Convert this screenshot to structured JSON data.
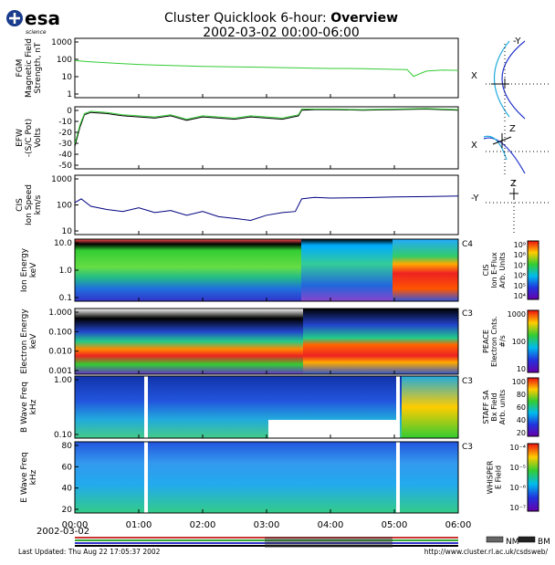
{
  "header": {
    "logo_text": "esa",
    "logo_sub": "science",
    "title_line1": "Cluster Quicklook 6-hour: ",
    "title_bold": "Overview",
    "title_line2": "2002-03-02 00:00-06:00"
  },
  "footer": {
    "date": "2002-03-02",
    "last_updated": "Last Updated:  Thu Aug 22 17:05:37 2002",
    "url": "http://www.cluster.rl.ac.uk/csdsweb/",
    "mode_nm": "NM",
    "mode_bm": "BM"
  },
  "chart_data": [
    {
      "type": "line",
      "panel": "FGM",
      "ylabel": [
        "FGM",
        "Magnetic Field",
        "Strength, nT"
      ],
      "yscale": "log",
      "ylim": [
        1,
        1000
      ],
      "yticks": [
        "1000",
        "100",
        "10",
        "1"
      ],
      "xticks": [
        "00:00",
        "01:00",
        "02:00",
        "03:00",
        "04:00",
        "05:00",
        "06:00"
      ],
      "series": [
        {
          "color": "#33cc33",
          "x": [
            0,
            0.25,
            0.5,
            0.75,
            1.0,
            1.25,
            1.5,
            1.75,
            2.0,
            2.25,
            2.5,
            2.75,
            3.0,
            3.25,
            3.5,
            3.75,
            4.0,
            4.25,
            4.5,
            4.75,
            5.0,
            5.2,
            5.3,
            5.5,
            5.75,
            6.0
          ],
          "y": [
            75,
            65,
            58,
            52,
            48,
            45,
            42,
            40,
            38,
            37,
            36,
            35,
            34,
            33,
            32,
            31,
            30,
            30,
            29,
            28,
            27,
            26,
            12,
            22,
            25,
            24
          ]
        }
      ]
    },
    {
      "type": "line",
      "panel": "EFW",
      "ylabel": [
        "EFW",
        "-(S/C Pot)",
        "Volts"
      ],
      "ylim": [
        -55,
        0
      ],
      "yticks": [
        "0",
        "-10",
        "-20",
        "-30",
        "-40",
        "-50"
      ],
      "series": [
        {
          "color": "#000000",
          "x": [
            0,
            0.08,
            0.15,
            0.25,
            0.5,
            0.75,
            1.0,
            1.25,
            1.5,
            1.75,
            2.0,
            2.25,
            2.5,
            2.75,
            3.0,
            3.25,
            3.5,
            3.55,
            3.75,
            4.0,
            4.5,
            5.0,
            5.5,
            6.0
          ],
          "y": [
            -35,
            -18,
            -7,
            -5,
            -6,
            -8,
            -9,
            -10,
            -8,
            -12,
            -9,
            -10,
            -11,
            -9,
            -10,
            -11,
            -8,
            -3,
            -2.5,
            -2.5,
            -3,
            -2.5,
            -2,
            -3
          ]
        },
        {
          "color": "#33cc33",
          "x": [
            0,
            0.08,
            0.15,
            0.25,
            0.5,
            0.75,
            1.0,
            1.25,
            1.5,
            1.75,
            2.0,
            2.25,
            2.5,
            2.75,
            3.0,
            3.25,
            3.5,
            3.55,
            3.75,
            4.0,
            4.5,
            5.0,
            5.5,
            6.0
          ],
          "y": [
            -33,
            -16,
            -6,
            -4,
            -5,
            -7,
            -8,
            -9,
            -7,
            -11,
            -8,
            -9,
            -10,
            -8,
            -9,
            -10,
            -7,
            -2,
            -2,
            -2,
            -2.5,
            -2,
            -1.5,
            -2.5
          ]
        }
      ]
    },
    {
      "type": "line",
      "panel": "CIS",
      "ylabel": [
        "CIS",
        "Ion Speed",
        "km/s"
      ],
      "yscale": "log",
      "ylim": [
        10,
        1000
      ],
      "yticks": [
        "1000",
        "100",
        "10"
      ],
      "series": [
        {
          "color": "#000080",
          "x": [
            0,
            0.1,
            0.25,
            0.5,
            0.75,
            1.0,
            1.25,
            1.5,
            1.75,
            2.0,
            2.25,
            2.5,
            2.75,
            3.0,
            3.25,
            3.45,
            3.55,
            3.75,
            4.0,
            4.5,
            5.0,
            5.5,
            6.0
          ],
          "y": [
            120,
            160,
            90,
            70,
            60,
            80,
            55,
            65,
            45,
            60,
            40,
            35,
            30,
            45,
            55,
            60,
            160,
            180,
            170,
            175,
            185,
            190,
            200
          ]
        }
      ]
    },
    {
      "type": "heatmap",
      "panel": "CIS Ion Energy",
      "ylabel": [
        "Ion Energy",
        "keV"
      ],
      "yticks": [
        "10.0",
        "1.0",
        "0.1"
      ],
      "label": "C4",
      "colorbar": {
        "title": [
          "CIS",
          "Ion E-Flux",
          "Arb. Units"
        ],
        "ticks": [
          "10⁹",
          "10⁸",
          "10⁷",
          "10⁶",
          "10⁵",
          "10⁴"
        ]
      }
    },
    {
      "type": "heatmap",
      "panel": "PEACE Electron Energy",
      "ylabel": [
        "Electron Energy",
        "keV"
      ],
      "yticks": [
        "1.000",
        "0.100",
        "0.010",
        "0.001"
      ],
      "label": "C3",
      "colorbar": {
        "title": [
          "PEACE",
          "Electron Cnts.",
          "#/s"
        ],
        "ticks": [
          "1000",
          "100",
          "10"
        ]
      }
    },
    {
      "type": "heatmap",
      "panel": "STAFF B Wave",
      "ylabel": [
        "B Wave Freq",
        "kHz"
      ],
      "yticks": [
        "1.00",
        "0.10"
      ],
      "label": "C3",
      "colorbar": {
        "title": [
          "STAFF SA",
          "Bx Field",
          "Arb. units"
        ],
        "ticks": [
          "100",
          "80",
          "60",
          "40",
          "20"
        ]
      }
    },
    {
      "type": "heatmap",
      "panel": "WHISPER E Wave",
      "ylabel": [
        "E Wave Freq",
        "kHz"
      ],
      "yticks": [
        "80",
        "60",
        "40",
        "20"
      ],
      "label": "C3",
      "colorbar": {
        "title": [
          "WHISPER",
          "E Field"
        ],
        "ticks": [
          "10⁻⁴",
          "10⁻⁵",
          "10⁻⁶",
          "10⁻⁷"
        ]
      }
    }
  ],
  "orbit": {
    "plot1": {
      "top": "-Y",
      "left": "X"
    },
    "plot2": {
      "top": "Z",
      "left": "X"
    },
    "plot3": {
      "top": "Z",
      "left": "-Y"
    }
  }
}
